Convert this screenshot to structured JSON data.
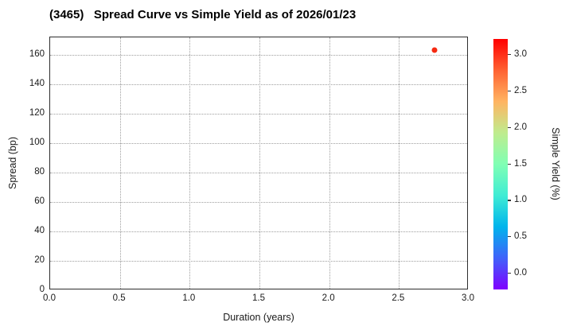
{
  "title": "(3465)   Spread Curve vs Simple Yield as of 2026/01/23",
  "chart_data": {
    "type": "scatter",
    "title": "(3465)   Spread Curve vs Simple Yield as of 2026/01/23",
    "xlabel": "Duration (years)",
    "ylabel": "Spread (bp)",
    "xlim": [
      0.0,
      3.0
    ],
    "ylim": [
      0,
      172
    ],
    "xticks": [
      0.0,
      0.5,
      1.0,
      1.5,
      2.0,
      2.5,
      3.0
    ],
    "yticks": [
      0,
      20,
      40,
      60,
      80,
      100,
      120,
      140,
      160
    ],
    "grid": true,
    "grid_style": "dotted",
    "legend": "none",
    "points": [
      {
        "x": 2.76,
        "y": 163,
        "simple_yield": 3.0,
        "color": "#f52a12"
      }
    ],
    "colorbar": {
      "label": "Simple Yield (%)",
      "ticks": [
        0.0,
        0.5,
        1.0,
        1.5,
        2.0,
        2.5,
        3.0
      ],
      "vmin": -0.23,
      "vmax": 3.21,
      "colormap": "rainbow",
      "gradient_stops_bottom_to_top": [
        "#8000ff",
        "#4062fa",
        "#00b4ec",
        "#40ecd4",
        "#80ffb4",
        "#bfec8e",
        "#ffb462",
        "#ff6232",
        "#ff0000"
      ]
    }
  },
  "colors": {
    "point": "#f52a12",
    "grid": "#9e9e9e",
    "spine": "#2e2e2e",
    "text": "#1a1a1a",
    "background": "#ffffff"
  }
}
